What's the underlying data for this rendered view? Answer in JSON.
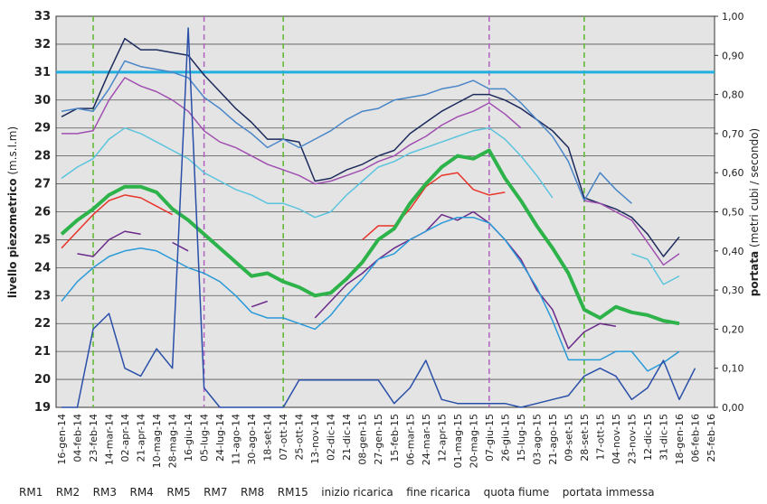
{
  "chart_data": {
    "type": "line",
    "ylabel": "livello piezometrico",
    "ylabel_unit": "(m.s.l.m)",
    "y2label": "portata",
    "y2label_unit": "(metri cubi / secondo)",
    "categories": [
      "16-gen-14",
      "04-feb-14",
      "23-feb-14",
      "14-mar-14",
      "02-apr-14",
      "21-apr-14",
      "10-mag-14",
      "28-mag-14",
      "16-giu-14",
      "05-lug-14",
      "24-lug-14",
      "11-ago-14",
      "30-ago-14",
      "18-set-14",
      "07-ott-14",
      "25-ott-14",
      "13-nov-14",
      "02-dic-14",
      "21-dic-14",
      "08-gen-15",
      "27-gen-15",
      "15-feb-15",
      "06-mar-15",
      "24-mar-15",
      "12-apr-15",
      "01-mag-15",
      "20-mag-15",
      "07-giu-15",
      "26-giu-15",
      "15-lug-15",
      "03-ago-15",
      "21-ago-15",
      "09-set-15",
      "28-set-15",
      "17-ott-15",
      "04-nov-15",
      "23-nov-15",
      "12-dic-15",
      "31-dic-15",
      "18-gen-16",
      "06-feb-16",
      "25-feb-16"
    ],
    "ylim": [
      19,
      33
    ],
    "yticks": [
      19,
      20,
      21,
      22,
      23,
      24,
      25,
      26,
      27,
      28,
      29,
      30,
      31,
      32,
      33
    ],
    "y2lim": [
      0,
      1
    ],
    "y2ticks": [
      {
        "value": 0,
        "label": "0,00"
      },
      {
        "value": 0.1,
        "label": "0,10"
      },
      {
        "value": 0.2,
        "label": "0,20"
      },
      {
        "value": 0.3,
        "label": "0,30"
      },
      {
        "value": 0.4,
        "label": "0,40"
      },
      {
        "value": 0.5,
        "label": "0,50"
      },
      {
        "value": 0.6,
        "label": "0,60"
      },
      {
        "value": 0.7,
        "label": "0,70"
      },
      {
        "value": 0.8,
        "label": "0,80"
      },
      {
        "value": 0.9,
        "label": "0,90"
      },
      {
        "value": 1,
        "label": "1,00"
      }
    ],
    "grid": true,
    "series": [
      {
        "name": "RM1",
        "kind": "line",
        "color": "#1c2a5c",
        "width": 1.5,
        "values": [
          29.4,
          29.7,
          29.7,
          31.0,
          32.2,
          31.8,
          31.8,
          31.7,
          31.6,
          30.9,
          30.3,
          29.7,
          29.2,
          28.6,
          28.6,
          28.5,
          27.1,
          27.2,
          27.5,
          27.7,
          28.0,
          28.2,
          28.8,
          29.2,
          29.6,
          29.9,
          30.2,
          30.2,
          30.0,
          29.7,
          29.3,
          28.9,
          28.3,
          26.5,
          26.3,
          26.1,
          25.8,
          25.2,
          24.4,
          25.1,
          null,
          null
        ]
      },
      {
        "name": "RM2",
        "kind": "line",
        "color": "#4a86c8",
        "width": 1.5,
        "values": [
          29.6,
          29.7,
          29.6,
          30.4,
          31.4,
          31.2,
          31.1,
          31.0,
          30.8,
          30.1,
          29.7,
          29.2,
          28.8,
          28.3,
          28.6,
          28.3,
          28.6,
          28.9,
          29.3,
          29.6,
          29.7,
          30.0,
          30.1,
          30.2,
          30.4,
          30.5,
          30.7,
          30.4,
          30.4,
          29.9,
          29.3,
          28.7,
          27.8,
          26.4,
          27.4,
          26.8,
          26.3,
          null,
          null,
          null,
          null,
          null
        ]
      },
      {
        "name": "RM3",
        "kind": "line",
        "color": "#a050b0",
        "width": 1.5,
        "values": [
          28.8,
          28.8,
          28.9,
          30.0,
          30.8,
          30.5,
          30.3,
          30.0,
          29.6,
          28.9,
          28.5,
          28.3,
          28.0,
          27.7,
          27.5,
          27.3,
          27.0,
          27.1,
          27.3,
          27.5,
          27.8,
          28.0,
          28.4,
          28.7,
          29.1,
          29.4,
          29.6,
          29.9,
          29.5,
          29.0,
          null,
          null,
          null,
          26.4,
          26.3,
          26.0,
          25.7,
          24.9,
          24.1,
          24.5,
          null,
          null
        ]
      },
      {
        "name": "RM4",
        "kind": "line",
        "color": "#5cc4de",
        "width": 1.5,
        "values": [
          27.2,
          27.6,
          27.9,
          28.6,
          29.0,
          28.8,
          28.5,
          28.2,
          27.9,
          27.4,
          27.1,
          26.8,
          26.6,
          26.3,
          26.3,
          26.1,
          25.8,
          26.0,
          26.6,
          27.1,
          27.6,
          27.8,
          28.1,
          28.3,
          28.5,
          28.7,
          28.9,
          29.0,
          28.6,
          28.0,
          27.3,
          26.5,
          null,
          null,
          null,
          null,
          24.5,
          24.3,
          23.4,
          23.7,
          null,
          null
        ]
      },
      {
        "name": "RM5",
        "kind": "line",
        "color": "#2db34a",
        "width": 4,
        "values": [
          25.2,
          25.7,
          26.1,
          26.6,
          26.9,
          26.9,
          26.7,
          26.1,
          25.7,
          25.2,
          24.7,
          24.2,
          23.7,
          23.8,
          23.5,
          23.3,
          23.0,
          23.1,
          23.6,
          24.2,
          25.0,
          25.4,
          26.3,
          27.0,
          27.6,
          28.0,
          27.9,
          28.2,
          27.2,
          26.4,
          25.5,
          24.7,
          23.8,
          22.5,
          22.2,
          22.6,
          22.4,
          22.3,
          22.1,
          22.0,
          null,
          null
        ]
      },
      {
        "name": "RM7",
        "kind": "line",
        "color": "#e8342a",
        "width": 1.5,
        "values": [
          24.7,
          25.3,
          25.9,
          26.4,
          26.6,
          26.5,
          26.2,
          25.9,
          null,
          null,
          null,
          null,
          null,
          null,
          null,
          null,
          null,
          null,
          null,
          25.0,
          25.5,
          25.5,
          26.1,
          26.9,
          27.3,
          27.4,
          26.8,
          26.6,
          26.7,
          null,
          null,
          null,
          null,
          null,
          null,
          null,
          null,
          null,
          null,
          null,
          null,
          null
        ]
      },
      {
        "name": "RM8",
        "kind": "line",
        "color": "#6a2a8a",
        "width": 1.5,
        "values": [
          null,
          24.5,
          24.4,
          25.0,
          25.3,
          25.2,
          null,
          24.9,
          24.6,
          null,
          null,
          null,
          22.6,
          22.8,
          null,
          null,
          22.2,
          22.8,
          23.4,
          23.8,
          24.3,
          24.7,
          25.0,
          25.3,
          25.9,
          25.7,
          26.0,
          25.6,
          25.0,
          24.3,
          23.2,
          22.5,
          21.1,
          21.7,
          22.0,
          21.9,
          null,
          null,
          null,
          null,
          null,
          null
        ]
      },
      {
        "name": "RM15",
        "kind": "line",
        "color": "#2a9ad8",
        "width": 1.5,
        "values": [
          22.8,
          23.5,
          24.0,
          24.4,
          24.6,
          24.7,
          24.6,
          24.3,
          24.0,
          23.8,
          23.5,
          23.0,
          22.4,
          22.2,
          22.2,
          22.0,
          21.8,
          22.3,
          23.0,
          23.6,
          24.3,
          24.5,
          25.0,
          25.3,
          25.6,
          25.8,
          25.8,
          25.6,
          25.0,
          24.2,
          23.3,
          22.1,
          20.7,
          20.7,
          20.7,
          21.0,
          21.0,
          20.3,
          20.6,
          21.0,
          null,
          null
        ]
      },
      {
        "name": "inizio ricarica",
        "kind": "vline",
        "color": "#5cb82e",
        "x": [
          "23-feb-14",
          "07-ott-14",
          "28-set-15"
        ]
      },
      {
        "name": "fine ricarica",
        "kind": "vline",
        "color": "#b060c0",
        "x": [
          "05-lug-14",
          "07-giu-15"
        ]
      },
      {
        "name": "quota fiume",
        "kind": "hline",
        "color": "#1fb0e0",
        "value": 31
      },
      {
        "name": "portata immessa",
        "kind": "line",
        "axis": "y2",
        "color": "#2a4fa8",
        "width": 1.5,
        "values": [
          0,
          0,
          0.2,
          0.24,
          0.1,
          0.08,
          0.15,
          0.1,
          0.97,
          0.05,
          0,
          0,
          0,
          0,
          0,
          0.07,
          0.07,
          0.07,
          0.07,
          0.07,
          0.07,
          0.01,
          0.05,
          0.12,
          0.02,
          0.01,
          0.01,
          0.01,
          0.01,
          0,
          0.01,
          0.02,
          0.03,
          0.08,
          0.1,
          0.08,
          0.02,
          0.05,
          0.12,
          0.02,
          0.1,
          null
        ]
      }
    ]
  }
}
